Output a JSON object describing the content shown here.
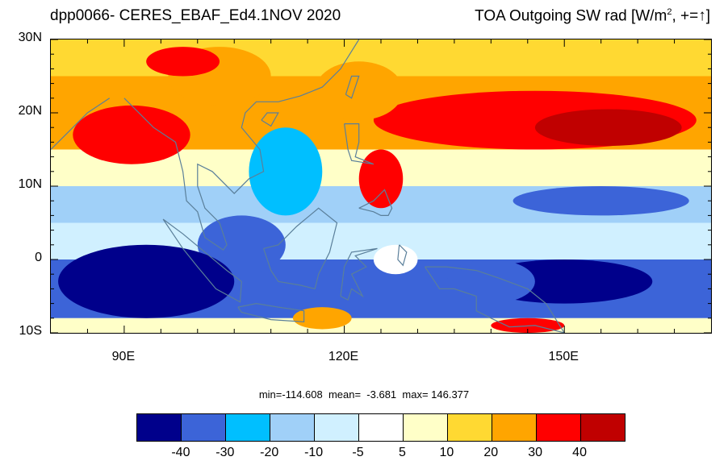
{
  "title_left": "dpp0066- CERES_EBAF_Ed4.1NOV 2020",
  "title_right": {
    "prefix": "TOA Outgoing SW rad [W/m",
    "sup": "2",
    "suffix": ", +=",
    "arrow": "↑",
    "close": "]",
    "arrow_icon": "up-arrow-icon"
  },
  "map": {
    "lat_range": [
      -10,
      30
    ],
    "lon_range": [
      80,
      170
    ],
    "lat_labels": [
      "30N",
      "20N",
      "10N",
      "0",
      "10S"
    ],
    "lon_labels": [
      "90E",
      "120E",
      "150E"
    ],
    "lat_ticks": [
      30,
      20,
      10,
      0,
      -10
    ],
    "lon_ticks": [
      90,
      120,
      150
    ]
  },
  "stats": {
    "text": "min=-114.608  mean=  -3.681  max= 146.377",
    "min": -114.608,
    "mean": -3.681,
    "max": 146.377
  },
  "colorbar": {
    "colors": [
      "#00008b",
      "#3c64d8",
      "#00bfff",
      "#a0d0f8",
      "#d0f0ff",
      "#ffffff",
      "#ffffc8",
      "#ffd932",
      "#ffa500",
      "#ff0000",
      "#c00000"
    ],
    "labels": [
      "-40",
      "-30",
      "-20",
      "-10",
      "-5",
      "5",
      "10",
      "20",
      "30",
      "40"
    ]
  }
}
